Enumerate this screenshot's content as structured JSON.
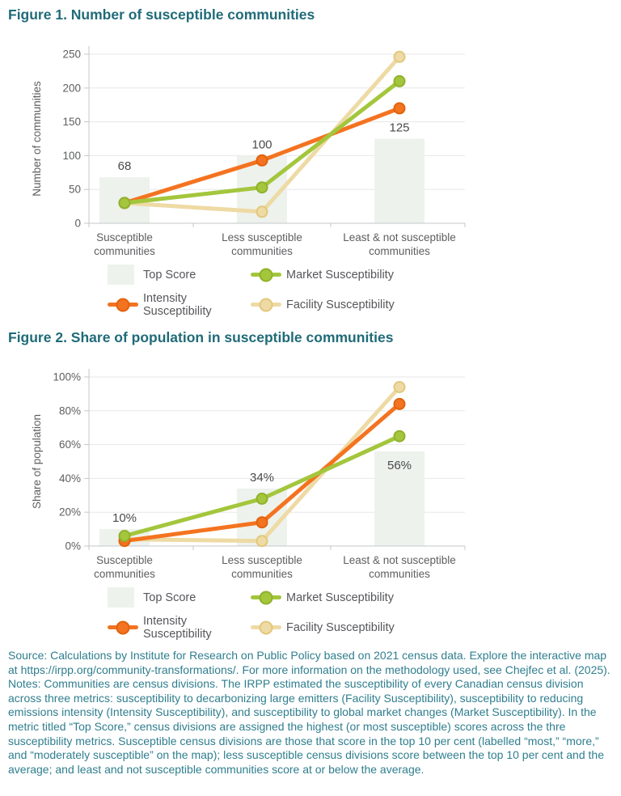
{
  "figure1": {
    "title": "Figure 1. Number of susceptible communities"
  },
  "figure2": {
    "title": "Figure 2. Share of population in susceptible communities"
  },
  "chart_data": [
    {
      "type": "bar+line",
      "title": "Figure 1. Number of susceptible communities",
      "ylabel": "Number of communities",
      "categories": [
        "Susceptible communities",
        "Less susceptible communities",
        "Least & not susceptible communities"
      ],
      "ylim": [
        0,
        250
      ],
      "yticks": [
        0,
        50,
        100,
        150,
        200,
        250
      ],
      "tick_suffix": "",
      "grid": true,
      "legend_position": "bottom",
      "bars": {
        "name": "Top Score",
        "values": [
          68,
          100,
          125
        ],
        "labels": [
          "68",
          "100",
          "125"
        ]
      },
      "label_inside": [
        false,
        false,
        false
      ],
      "series": [
        {
          "name": "Market Susceptibility",
          "color": "green",
          "values": [
            30,
            53,
            210
          ]
        },
        {
          "name": "Intensity Susceptibility",
          "color": "orange",
          "values": [
            30,
            93,
            170
          ]
        },
        {
          "name": "Facility Susceptibility",
          "color": "beige",
          "values": [
            30,
            17,
            246
          ]
        }
      ]
    },
    {
      "type": "bar+line",
      "title": "Figure 2. Share of population in susceptible communities",
      "ylabel": "Share of population",
      "categories": [
        "Susceptible communities",
        "Less susceptible communities",
        "Least & not susceptible communities"
      ],
      "ylim": [
        0,
        100
      ],
      "yticks": [
        0,
        20,
        40,
        60,
        80,
        100
      ],
      "tick_suffix": "%",
      "grid": true,
      "legend_position": "bottom",
      "bars": {
        "name": "Top Score",
        "values": [
          10,
          34,
          56
        ],
        "labels": [
          "10%",
          "34%",
          "56%"
        ]
      },
      "label_inside": [
        false,
        false,
        true
      ],
      "series": [
        {
          "name": "Market Susceptibility",
          "color": "green",
          "values": [
            6,
            28,
            65
          ]
        },
        {
          "name": "Intensity Susceptibility",
          "color": "orange",
          "values": [
            3,
            14,
            84
          ]
        },
        {
          "name": "Facility Susceptibility",
          "color": "beige",
          "values": [
            4,
            3,
            94
          ]
        }
      ]
    }
  ],
  "legend": {
    "items": [
      {
        "label": "Top Score",
        "swatch": "bar",
        "color": "bar"
      },
      {
        "label": "Market Susceptibility",
        "swatch": "line",
        "color": "green"
      },
      {
        "label": "Intensity Susceptibility",
        "swatch": "line",
        "color": "orange"
      },
      {
        "label": "Facility Susceptibility",
        "swatch": "line",
        "color": "beige"
      }
    ]
  },
  "footer": {
    "source": "Source: Calculations by Institute for Research on Public Policy based on 2021 census data. Explore the interactive map at https://irpp.org/community-transformations/. For more information on the methodology used, see Chejfec et al. (2025).",
    "notes": "Notes: Communities are census divisions. The IRPP estimated the susceptibility of every Canadian census division across three metrics: susceptibility to decarbonizing large emitters (Facility Susceptibility), susceptibility to reducing emissions intensity (Intensity Susceptibility), and susceptibility to global market changes (Market Susceptibility). In the metric titled “Top Score,” census divisions are assigned the highest (or most susceptible) scores across the thre susceptibility metrics. Susceptible census divisions are those that score in the top 10 per cent (labelled “most,” “more,” and “moderately susceptible” on the map); less susceptible census divisions score between the top 10 per cent and the average; and least and not susceptible communities score at or below the average."
  },
  "colors": {
    "title": "#206b78",
    "body_text": "#2f7e8e",
    "green": "#a3c63c",
    "green_dark": "#90b12c",
    "orange": "#f47320",
    "orange_dark": "#e0630e",
    "beige": "#eedaa4",
    "beige_dark": "#e2c77c",
    "bar": "#edf2ed",
    "gridline": "#e7e7e7",
    "axis": "#c6c7c9",
    "tick_text": "#5d5e60",
    "data_label": "#494a4c"
  }
}
